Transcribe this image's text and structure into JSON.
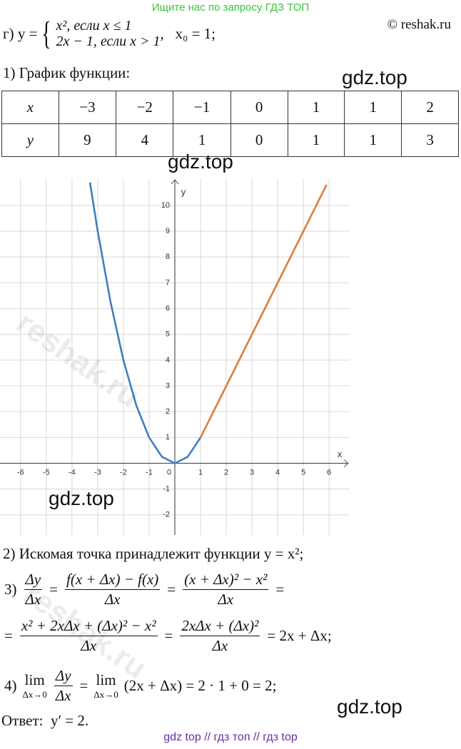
{
  "banner": "Ищите нас по запросу ГДЗ ТОП",
  "copyright": "© reshak.ru",
  "problem": {
    "label": "г) y =",
    "case1": "x², если x ≤ 1",
    "case2": "2x − 1, если x > 1",
    "point": ",   x₀ = 1;"
  },
  "step1": "1) График функции:",
  "table": {
    "rows": [
      [
        "x",
        "−3",
        "−2",
        "−1",
        "0",
        "1",
        "1",
        "2"
      ],
      [
        "y",
        "9",
        "4",
        "1",
        "0",
        "1",
        "1",
        "3"
      ]
    ]
  },
  "watermarks": [
    "gdz.top",
    "gdz.top",
    "gdz.top",
    "gdz.top",
    "reshak.ru",
    "reshak.ru"
  ],
  "graph": {
    "type": "line",
    "xlabel": "x",
    "ylabel": "y",
    "xlim": [
      -6.8,
      6.8
    ],
    "ylim": [
      -2.78,
      11.05
    ],
    "xticks": [
      -6,
      -5,
      -4,
      -3,
      -2,
      -1,
      0,
      1,
      2,
      3,
      4,
      5,
      6
    ],
    "yticks": [
      -2,
      -1,
      1,
      2,
      3,
      4,
      5,
      6,
      7,
      8,
      9,
      10
    ],
    "grid": true,
    "series": [
      {
        "color": "#3f7fc1",
        "x": [
          -3.3,
          -3,
          -2.5,
          -2,
          -1.5,
          -1,
          -0.5,
          0,
          0.5,
          1
        ],
        "values": [
          10.89,
          9,
          6.25,
          4,
          2.25,
          1,
          0.25,
          0,
          0.25,
          1
        ]
      },
      {
        "color": "#e07b39",
        "x": [
          1,
          5.9
        ],
        "values": [
          1,
          10.8
        ]
      }
    ]
  },
  "step2": "2) Искомая точка принадлежит функции y = x²;",
  "step3": {
    "lines": [
      [
        "3)",
        {
          "num": "Δy",
          "den": "Δx"
        },
        "=",
        {
          "num": "f(x + Δx) − f(x)",
          "den": "Δx"
        },
        "=",
        {
          "num": "(x + Δx)² − x²",
          "den": "Δx"
        },
        "="
      ],
      [
        "=",
        {
          "num": "x² + 2xΔx + (Δx)² − x²",
          "den": "Δx"
        },
        "=",
        {
          "num": "2xΔx + (Δx)²",
          "den": "Δx"
        },
        "= 2x + Δx;"
      ]
    ]
  },
  "step4": {
    "lines": [
      [
        "4)",
        {
          "lim": "lim",
          "sub": "Δx→0"
        },
        {
          "num": "Δy",
          "den": "Δx"
        },
        "=",
        {
          "lim": "lim",
          "sub": "Δx→0"
        },
        "(2x + Δx) = 2 · 1 + 0 = 2;"
      ]
    ]
  },
  "answer": "Ответ:  y′ = 2.",
  "footer": "gdz top  //  гдз топ  //  гдз top"
}
